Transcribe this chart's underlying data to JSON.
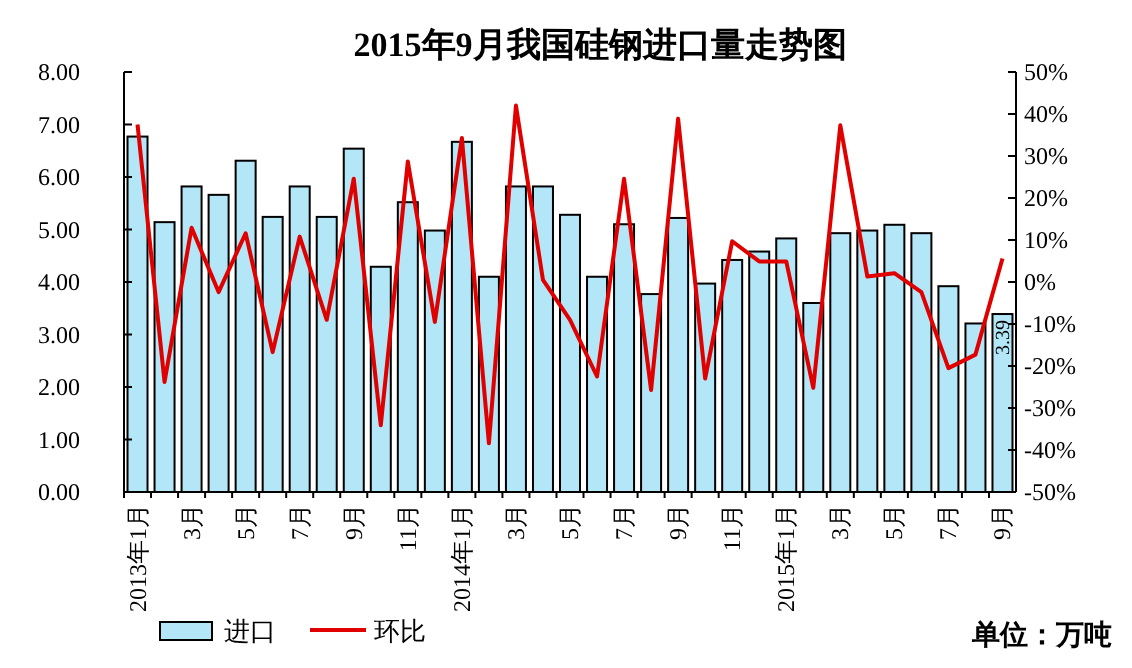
{
  "chart_data": {
    "type": "bar",
    "title": "2015年9月我国硅钢进口量走势图",
    "categories": [
      "2013年1月",
      null,
      "3月",
      null,
      "5月",
      null,
      "7月",
      null,
      "9月",
      null,
      "11月",
      null,
      "2014年1月",
      null,
      "3月",
      null,
      "5月",
      null,
      "7月",
      null,
      "9月",
      null,
      "11月",
      null,
      "2015年1月",
      null,
      "3月",
      null,
      "5月",
      null,
      "7月",
      null,
      "9月"
    ],
    "series": [
      {
        "name": "进口",
        "color": "#b3e6f7",
        "values": [
          6.77,
          5.14,
          5.82,
          5.66,
          6.31,
          5.24,
          5.82,
          5.24,
          6.54,
          4.29,
          5.52,
          4.98,
          6.67,
          4.1,
          5.82,
          5.82,
          5.28,
          4.1,
          5.1,
          3.77,
          5.22,
          3.97,
          4.42,
          4.58,
          4.83,
          3.6,
          4.93,
          4.98,
          5.09,
          4.93,
          3.92,
          3.21,
          3.39
        ],
        "value_labels": [
          null,
          null,
          null,
          null,
          null,
          null,
          null,
          null,
          null,
          null,
          null,
          null,
          null,
          null,
          null,
          null,
          null,
          null,
          null,
          null,
          null,
          null,
          null,
          null,
          null,
          null,
          null,
          null,
          null,
          null,
          null,
          null,
          "3.39"
        ]
      },
      {
        "name": "环比",
        "type": "line",
        "axis": "y2",
        "color": "#e00000",
        "values": [
          37.5,
          -23.8,
          12.9,
          -2.4,
          11.6,
          -16.7,
          10.8,
          -9.0,
          24.6,
          -34.1,
          28.7,
          -9.5,
          34.3,
          -38.4,
          42.0,
          0.5,
          -9.0,
          -22.5,
          24.6,
          -25.7,
          38.9,
          -23.0,
          9.7,
          4.9,
          4.9,
          -25.2,
          37.3,
          1.3,
          2.1,
          -2.4,
          -20.5,
          -17.3,
          5.6
        ]
      }
    ],
    "ylim": [
      0,
      8
    ],
    "yticks": [
      {
        "value": 0,
        "label": "0.00"
      },
      {
        "value": 1,
        "label": "1.00"
      },
      {
        "value": 2,
        "label": "2.00"
      },
      {
        "value": 3,
        "label": "3.00"
      },
      {
        "value": 4,
        "label": "4.00"
      },
      {
        "value": 5,
        "label": "5.00"
      },
      {
        "value": 6,
        "label": "6.00"
      },
      {
        "value": 7,
        "label": "7.00"
      },
      {
        "value": 8,
        "label": "8.00"
      }
    ],
    "y2lim": [
      -50,
      50
    ],
    "y2ticks": [
      {
        "value": -50,
        "label": "-50%"
      },
      {
        "value": -40,
        "label": "-40%"
      },
      {
        "value": -30,
        "label": "-30%"
      },
      {
        "value": -20,
        "label": "-20%"
      },
      {
        "value": -10,
        "label": "-10%"
      },
      {
        "value": 0,
        "label": "0%"
      },
      {
        "value": 10,
        "label": "10%"
      },
      {
        "value": 20,
        "label": "20%"
      },
      {
        "value": 30,
        "label": "30%"
      },
      {
        "value": 40,
        "label": "40%"
      },
      {
        "value": 50,
        "label": "50%"
      }
    ],
    "legend": "bottom",
    "annotations": [
      "单位：万吨"
    ]
  }
}
